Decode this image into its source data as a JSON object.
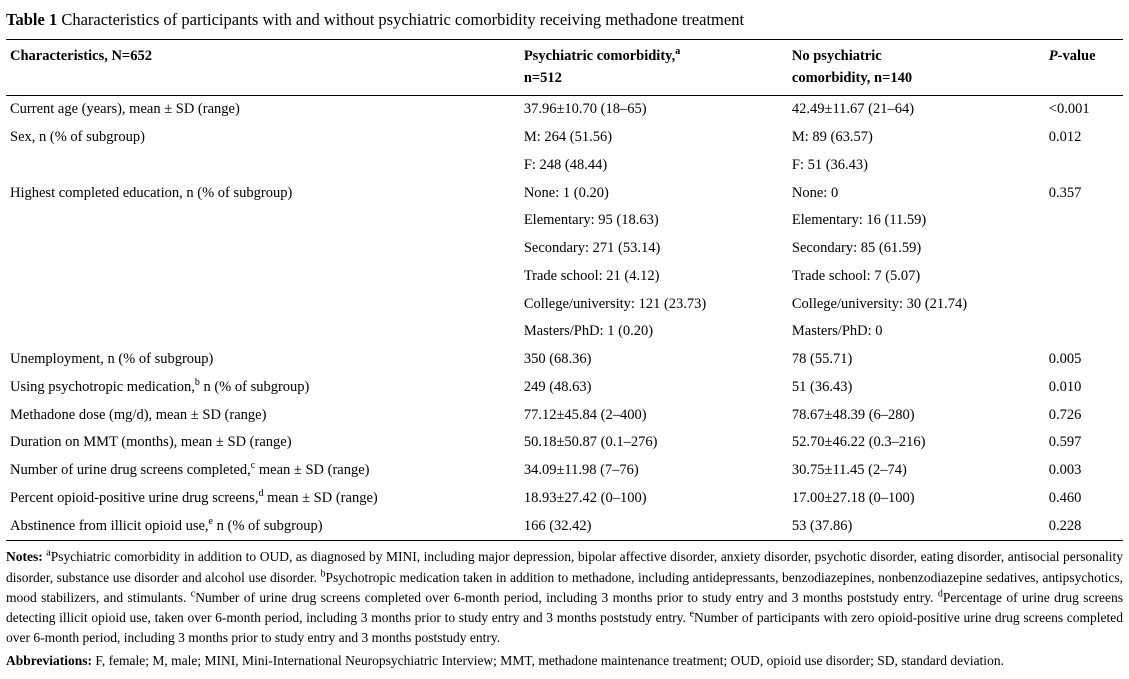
{
  "title": {
    "num": "Table 1",
    "text": "Characteristics of participants with and without psychiatric comorbidity receiving methadone treatment"
  },
  "headers": {
    "char": "Characteristics, N=652",
    "psy_l1": "Psychiatric comorbidity,",
    "psy_sup": "a",
    "psy_l2": "n=512",
    "nop_l1": "No psychiatric",
    "nop_l2": "comorbidity, n=140",
    "pval_i": "P",
    "pval_r": "-value"
  },
  "rows": [
    {
      "char": "Current age (years), mean ± SD (range)",
      "psy": [
        "37.96±10.70 (18–65)"
      ],
      "nop": [
        "42.49±11.67 (21–64)"
      ],
      "p": "<0.001"
    },
    {
      "char": "Sex, n (% of subgroup)",
      "psy": [
        "M: 264 (51.56)",
        "F: 248 (48.44)"
      ],
      "nop": [
        "M: 89 (63.57)",
        "F: 51 (36.43)"
      ],
      "p": "0.012"
    },
    {
      "char": "Highest completed education, n (% of subgroup)",
      "psy": [
        "None: 1 (0.20)",
        "Elementary: 95 (18.63)",
        "Secondary: 271 (53.14)",
        "Trade school: 21 (4.12)",
        "College/university: 121 (23.73)",
        "Masters/PhD: 1 (0.20)"
      ],
      "nop": [
        "None: 0",
        "Elementary: 16 (11.59)",
        "Secondary: 85 (61.59)",
        "Trade school: 7 (5.07)",
        "College/university: 30 (21.74)",
        "Masters/PhD: 0"
      ],
      "p": "0.357"
    },
    {
      "char": "Unemployment, n (% of subgroup)",
      "psy": [
        "350 (68.36)"
      ],
      "nop": [
        "78 (55.71)"
      ],
      "p": "0.005"
    },
    {
      "char_pre": "Using psychotropic medication,",
      "char_sup": "b",
      "char_post": " n (% of subgroup)",
      "psy": [
        "249 (48.63)"
      ],
      "nop": [
        "51 (36.43)"
      ],
      "p": "0.010"
    },
    {
      "char": "Methadone dose (mg/d), mean ± SD (range)",
      "psy": [
        "77.12±45.84 (2–400)"
      ],
      "nop": [
        "78.67±48.39 (6–280)"
      ],
      "p": "0.726"
    },
    {
      "char": "Duration on MMT (months), mean ± SD (range)",
      "psy": [
        "50.18±50.87 (0.1–276)"
      ],
      "nop": [
        "52.70±46.22 (0.3–216)"
      ],
      "p": "0.597"
    },
    {
      "char_pre": "Number of urine drug screens completed,",
      "char_sup": "c",
      "char_post": " mean ± SD (range)",
      "psy": [
        "34.09±11.98 (7–76)"
      ],
      "nop": [
        "30.75±11.45 (2–74)"
      ],
      "p": "0.003"
    },
    {
      "char_pre": "Percent opioid-positive urine drug screens,",
      "char_sup": "d",
      "char_post": " mean ± SD (range)",
      "psy": [
        "18.93±27.42 (0–100)"
      ],
      "nop": [
        "17.00±27.18 (0–100)"
      ],
      "p": "0.460"
    },
    {
      "char_pre": "Abstinence from illicit opioid use,",
      "char_sup": "e",
      "char_post": " n (% of subgroup)",
      "psy": [
        "166 (32.42)"
      ],
      "nop": [
        "53 (37.86)"
      ],
      "p": "0.228"
    }
  ],
  "notes": {
    "label": "Notes:",
    "a_sup": "a",
    "a": "Psychiatric comorbidity in addition to OUD, as diagnosed by MINI, including major depression, bipolar affective disorder, anxiety disorder, psychotic disorder, eating disorder, antisocial personality disorder, substance use disorder and alcohol use disorder. ",
    "b_sup": "b",
    "b": "Psychotropic medication taken in addition to methadone, including antidepressants, benzodiazepines, nonbenzodiazepine sedatives, antipsychotics, mood stabilizers, and stimulants. ",
    "c_sup": "c",
    "c": "Number of urine drug screens completed over 6-month period, including 3 months prior to study entry and 3 months poststudy entry. ",
    "d_sup": "d",
    "d": "Percentage of urine drug screens detecting illicit opioid use, taken over 6-month period, including 3 months prior to study entry and 3 months poststudy entry. ",
    "e_sup": "e",
    "e": "Number of participants with zero opioid-positive urine drug screens completed over 6-month period, including 3 months prior to study entry and 3 months poststudy entry."
  },
  "abbrev": {
    "label": "Abbreviations:",
    "text": "F, female; M, male; MINI, Mini-International Neuropsychiatric Interview; MMT, methadone maintenance treatment; OUD, opioid use disorder; SD, standard deviation."
  }
}
